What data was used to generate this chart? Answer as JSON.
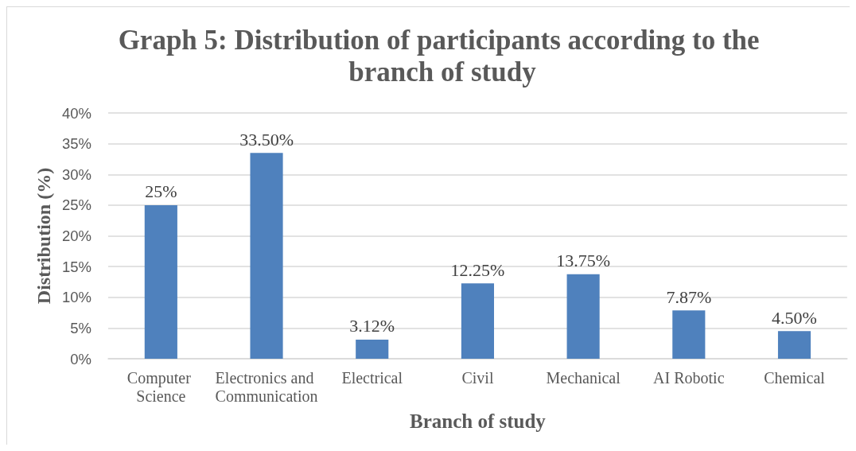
{
  "chart_data": {
    "type": "bar",
    "title": "Graph 5: Distribution of participants according to the branch of study",
    "xlabel": "Branch of study",
    "ylabel": "Distribution (%)",
    "categories": [
      "Computer Science",
      "Electronics and Communication",
      "Electrical",
      "Civil",
      "Mechanical",
      "AI Robotic",
      "Chemical"
    ],
    "values": [
      25,
      33.5,
      3.12,
      12.25,
      13.75,
      7.87,
      4.5
    ],
    "value_labels": [
      "25%",
      "33.50%",
      "3.12%",
      "12.25%",
      "13.75%",
      "7.87%",
      "4.50%"
    ],
    "color": "#4f81bd",
    "ylim": [
      0,
      40
    ],
    "yticks": [
      {
        "value": 0,
        "label": "0%"
      },
      {
        "value": 5,
        "label": "5%"
      },
      {
        "value": 10,
        "label": "10%"
      },
      {
        "value": 15,
        "label": "15%"
      },
      {
        "value": 20,
        "label": "20%"
      },
      {
        "value": 25,
        "label": "25%"
      },
      {
        "value": 30,
        "label": "30%"
      },
      {
        "value": 35,
        "label": "35%"
      },
      {
        "value": 40,
        "label": "40%"
      }
    ],
    "grid": true
  }
}
